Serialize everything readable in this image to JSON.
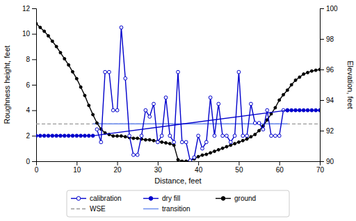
{
  "chart_data": {
    "type": "line",
    "x_label": "Distance, feet",
    "y_label": "Roughness height, feet",
    "y2_label": "Elevation, feet",
    "xlim": [
      0,
      70
    ],
    "xticks": [
      0,
      10,
      20,
      30,
      40,
      50,
      60,
      70
    ],
    "ylim": [
      0,
      12
    ],
    "yticks": [
      0,
      2,
      4,
      6,
      8,
      10,
      12
    ],
    "y2lim": [
      90,
      100
    ],
    "y2ticks": [
      90,
      92,
      94,
      96,
      98,
      100
    ],
    "grid": false,
    "legend": "bottom",
    "series": [
      {
        "name": "calibration",
        "color": "#0000CC",
        "marker": "circle-open",
        "line_style": "solid",
        "x": [
          15,
          16,
          17,
          18,
          19,
          20,
          21,
          22,
          23,
          24,
          25,
          26,
          27,
          28,
          29,
          30,
          31,
          32,
          33,
          34,
          35,
          36,
          37,
          38,
          39,
          40,
          41,
          42,
          43,
          44,
          45,
          46,
          47,
          48,
          49,
          50,
          51,
          52,
          53,
          54,
          55,
          56,
          57,
          58,
          59,
          60,
          61,
          62
        ],
        "values": [
          2.5,
          1.5,
          7.0,
          7.0,
          4.0,
          4.0,
          10.5,
          6.5,
          2.0,
          0.5,
          0.5,
          2.0,
          4.0,
          3.5,
          4.5,
          1.5,
          2.0,
          5.0,
          2.0,
          1.5,
          7.0,
          1.5,
          1.5,
          0.05,
          0.3,
          2.0,
          1.0,
          1.5,
          5.0,
          2.0,
          4.5,
          2.0,
          2.0,
          1.5,
          2.0,
          7.0,
          2.0,
          2.0,
          4.5,
          3.0,
          3.0,
          2.5,
          4.0,
          2.0,
          2.0,
          2.0,
          4.0,
          4.0
        ]
      },
      {
        "name": "dry fill",
        "color": "#0000CC",
        "marker": "circle",
        "line_style": "solid",
        "x": [
          0,
          1,
          2,
          3,
          4,
          5,
          6,
          7,
          8,
          9,
          10,
          11,
          12,
          13,
          14,
          62,
          63,
          64,
          65,
          66,
          67,
          68,
          69,
          70
        ],
        "values": [
          2.0,
          2.0,
          2.0,
          2.0,
          2.0,
          2.0,
          2.0,
          2.0,
          2.0,
          2.0,
          2.0,
          2.0,
          2.0,
          2.0,
          2.0,
          4.0,
          4.0,
          4.0,
          4.0,
          4.0,
          4.0,
          4.0,
          4.0,
          4.0
        ]
      },
      {
        "name": "ground",
        "color": "#000000",
        "marker": "circle",
        "line_style": "solid",
        "axis": "y2",
        "x": [
          0,
          1,
          2,
          3,
          4,
          5,
          6,
          7,
          8,
          9,
          10,
          11,
          12,
          13,
          14,
          15,
          16,
          17,
          18,
          19,
          20,
          21,
          22,
          23,
          24,
          25,
          26,
          27,
          28,
          29,
          30,
          31,
          32,
          33,
          34,
          35,
          36,
          37,
          38,
          39,
          40,
          41,
          42,
          43,
          44,
          45,
          46,
          47,
          48,
          49,
          50,
          51,
          52,
          53,
          54,
          55,
          56,
          57,
          58,
          59,
          60,
          61,
          62,
          63,
          64,
          65,
          66,
          67,
          68,
          69,
          70
        ],
        "values": [
          99.0,
          98.75,
          98.5,
          98.2,
          97.85,
          97.5,
          97.1,
          96.7,
          96.3,
          95.85,
          95.4,
          94.85,
          94.3,
          93.65,
          93.05,
          92.5,
          92.1,
          91.85,
          91.75,
          91.65,
          91.65,
          91.65,
          91.6,
          91.55,
          91.5,
          91.5,
          91.45,
          91.4,
          91.4,
          91.35,
          91.3,
          91.25,
          91.2,
          91.15,
          91.05,
          90.1,
          90.0,
          90.0,
          90.05,
          90.15,
          90.3,
          90.4,
          90.45,
          90.55,
          90.65,
          90.75,
          90.85,
          90.95,
          91.05,
          91.15,
          91.25,
          91.35,
          91.45,
          91.6,
          91.75,
          92.0,
          92.3,
          92.7,
          93.1,
          93.5,
          94.0,
          94.35,
          94.65,
          95.0,
          95.3,
          95.5,
          95.7,
          95.8,
          95.9,
          95.95,
          96.0
        ]
      },
      {
        "name": "WSE",
        "type": "hline",
        "color": "#999999",
        "line_style": "dashed",
        "values": [
          2.93
        ]
      },
      {
        "name": "transition",
        "color": "#6688EE",
        "line_style": "solid",
        "x": [
          14,
          62
        ],
        "values": [
          2.93,
          2.93
        ]
      }
    ]
  }
}
